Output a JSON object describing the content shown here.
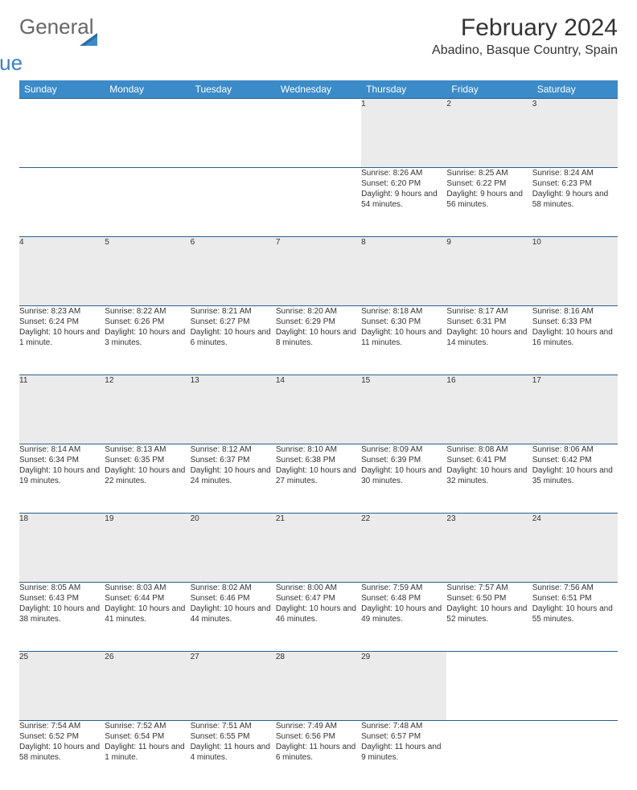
{
  "brand": {
    "word1": "General",
    "word2": "Blue"
  },
  "title": "February 2024",
  "location": "Abadino, Basque Country, Spain",
  "colors": {
    "header_bg": "#3b8bc9",
    "header_text": "#ffffff",
    "row_border": "#2d5f8a",
    "daynum_bg": "#ebebeb",
    "brand_gray": "#666666",
    "brand_blue": "#3b7fc4"
  },
  "day_headers": [
    "Sunday",
    "Monday",
    "Tuesday",
    "Wednesday",
    "Thursday",
    "Friday",
    "Saturday"
  ],
  "weeks": [
    {
      "nums": [
        "",
        "",
        "",
        "",
        "1",
        "2",
        "3"
      ],
      "cells": [
        "",
        "",
        "",
        "",
        "Sunrise: 8:26 AM\nSunset: 6:20 PM\nDaylight: 9 hours and 54 minutes.",
        "Sunrise: 8:25 AM\nSunset: 6:22 PM\nDaylight: 9 hours and 56 minutes.",
        "Sunrise: 8:24 AM\nSunset: 6:23 PM\nDaylight: 9 hours and 58 minutes."
      ]
    },
    {
      "nums": [
        "4",
        "5",
        "6",
        "7",
        "8",
        "9",
        "10"
      ],
      "cells": [
        "Sunrise: 8:23 AM\nSunset: 6:24 PM\nDaylight: 10 hours and 1 minute.",
        "Sunrise: 8:22 AM\nSunset: 6:26 PM\nDaylight: 10 hours and 3 minutes.",
        "Sunrise: 8:21 AM\nSunset: 6:27 PM\nDaylight: 10 hours and 6 minutes.",
        "Sunrise: 8:20 AM\nSunset: 6:29 PM\nDaylight: 10 hours and 8 minutes.",
        "Sunrise: 8:18 AM\nSunset: 6:30 PM\nDaylight: 10 hours and 11 minutes.",
        "Sunrise: 8:17 AM\nSunset: 6:31 PM\nDaylight: 10 hours and 14 minutes.",
        "Sunrise: 8:16 AM\nSunset: 6:33 PM\nDaylight: 10 hours and 16 minutes."
      ]
    },
    {
      "nums": [
        "11",
        "12",
        "13",
        "14",
        "15",
        "16",
        "17"
      ],
      "cells": [
        "Sunrise: 8:14 AM\nSunset: 6:34 PM\nDaylight: 10 hours and 19 minutes.",
        "Sunrise: 8:13 AM\nSunset: 6:35 PM\nDaylight: 10 hours and 22 minutes.",
        "Sunrise: 8:12 AM\nSunset: 6:37 PM\nDaylight: 10 hours and 24 minutes.",
        "Sunrise: 8:10 AM\nSunset: 6:38 PM\nDaylight: 10 hours and 27 minutes.",
        "Sunrise: 8:09 AM\nSunset: 6:39 PM\nDaylight: 10 hours and 30 minutes.",
        "Sunrise: 8:08 AM\nSunset: 6:41 PM\nDaylight: 10 hours and 32 minutes.",
        "Sunrise: 8:06 AM\nSunset: 6:42 PM\nDaylight: 10 hours and 35 minutes."
      ]
    },
    {
      "nums": [
        "18",
        "19",
        "20",
        "21",
        "22",
        "23",
        "24"
      ],
      "cells": [
        "Sunrise: 8:05 AM\nSunset: 6:43 PM\nDaylight: 10 hours and 38 minutes.",
        "Sunrise: 8:03 AM\nSunset: 6:44 PM\nDaylight: 10 hours and 41 minutes.",
        "Sunrise: 8:02 AM\nSunset: 6:46 PM\nDaylight: 10 hours and 44 minutes.",
        "Sunrise: 8:00 AM\nSunset: 6:47 PM\nDaylight: 10 hours and 46 minutes.",
        "Sunrise: 7:59 AM\nSunset: 6:48 PM\nDaylight: 10 hours and 49 minutes.",
        "Sunrise: 7:57 AM\nSunset: 6:50 PM\nDaylight: 10 hours and 52 minutes.",
        "Sunrise: 7:56 AM\nSunset: 6:51 PM\nDaylight: 10 hours and 55 minutes."
      ]
    },
    {
      "nums": [
        "25",
        "26",
        "27",
        "28",
        "29",
        "",
        ""
      ],
      "cells": [
        "Sunrise: 7:54 AM\nSunset: 6:52 PM\nDaylight: 10 hours and 58 minutes.",
        "Sunrise: 7:52 AM\nSunset: 6:54 PM\nDaylight: 11 hours and 1 minute.",
        "Sunrise: 7:51 AM\nSunset: 6:55 PM\nDaylight: 11 hours and 4 minutes.",
        "Sunrise: 7:49 AM\nSunset: 6:56 PM\nDaylight: 11 hours and 6 minutes.",
        "Sunrise: 7:48 AM\nSunset: 6:57 PM\nDaylight: 11 hours and 9 minutes.",
        "",
        ""
      ]
    }
  ]
}
